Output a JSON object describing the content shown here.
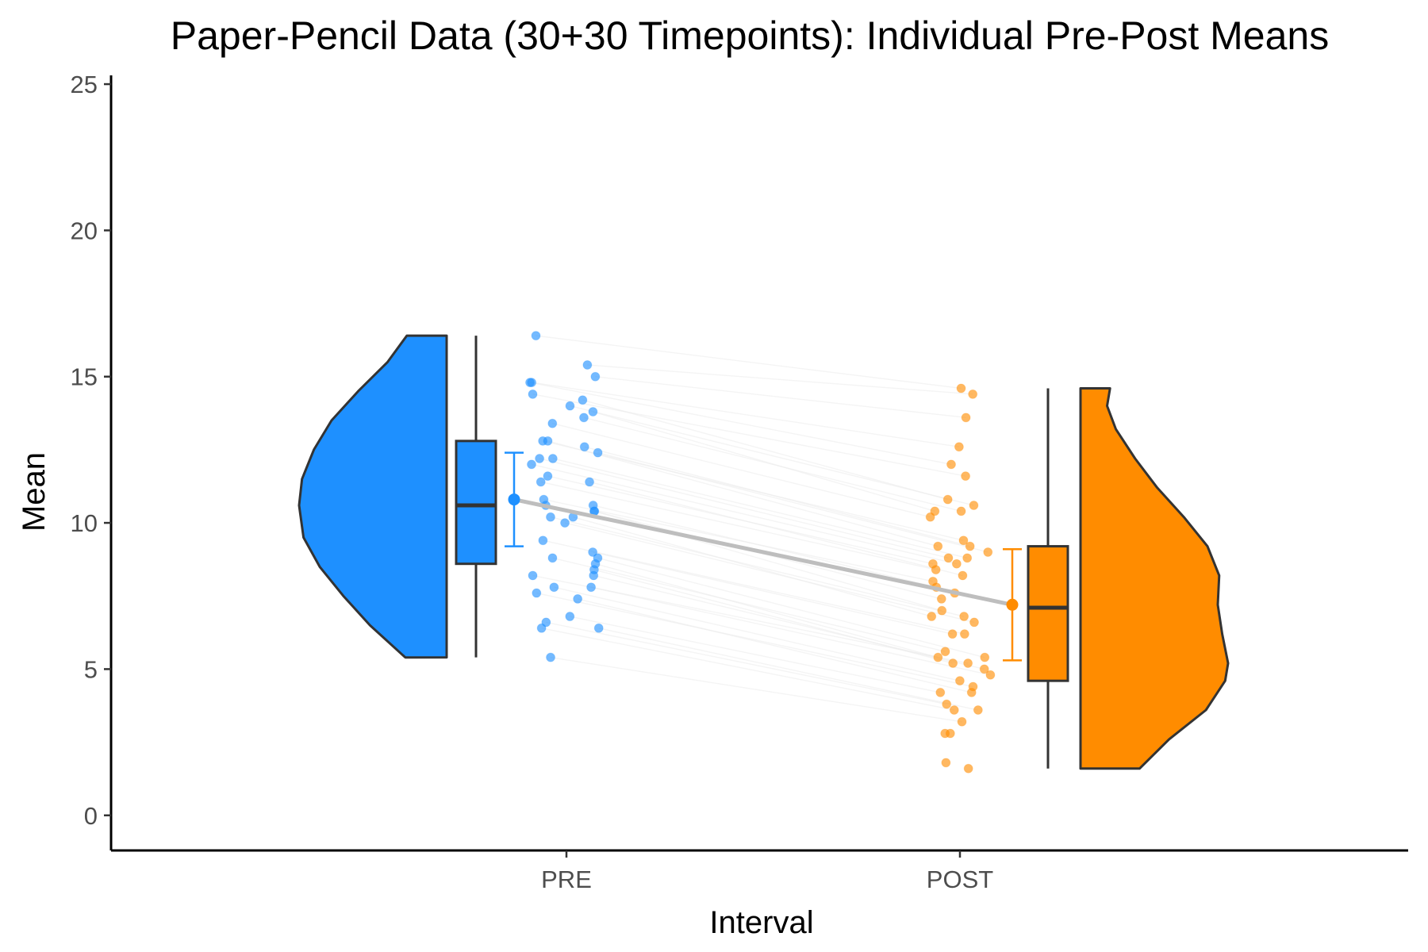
{
  "chart_data": {
    "type": "raincloud",
    "title": "Paper-Pencil Data (30+30 Timepoints): Individual Pre-Post Means",
    "xlabel": "Interval",
    "ylabel": "Mean",
    "categories": [
      "PRE",
      "POST"
    ],
    "ylim": [
      -1.2,
      25.3
    ],
    "yticks": [
      0,
      5,
      10,
      15,
      20,
      25
    ],
    "grid": false,
    "legend": "none",
    "colors": {
      "PRE": "#1e90ff",
      "POST": "#ff8c00",
      "outline": "#333333",
      "mean_line": "#bebebe",
      "paired_lines": "#ebebeb"
    },
    "series": [
      {
        "group": "PRE",
        "box": {
          "whisker_low": 5.4,
          "q1": 8.6,
          "median": 10.6,
          "q3": 12.8,
          "whisker_high": 16.4
        },
        "mean": 10.8,
        "error_bar": [
          9.2,
          12.4
        ],
        "density": [
          [
            5.4,
            0.28
          ],
          [
            6.5,
            0.52
          ],
          [
            7.5,
            0.7
          ],
          [
            8.5,
            0.86
          ],
          [
            9.5,
            0.97
          ],
          [
            10.6,
            1.0
          ],
          [
            11.5,
            0.98
          ],
          [
            12.5,
            0.9
          ],
          [
            13.5,
            0.78
          ],
          [
            14.5,
            0.6
          ],
          [
            15.5,
            0.4
          ],
          [
            16.4,
            0.27
          ]
        ],
        "points": [
          16.4,
          15.4,
          15.0,
          14.8,
          14.8,
          14.4,
          14.2,
          14.0,
          13.8,
          13.6,
          13.4,
          12.8,
          12.8,
          12.6,
          12.4,
          12.2,
          12.2,
          12.0,
          11.6,
          11.4,
          11.4,
          10.8,
          10.6,
          10.6,
          10.4,
          10.4,
          10.2,
          10.2,
          10.0,
          9.4,
          9.0,
          8.8,
          8.8,
          8.6,
          8.4,
          8.2,
          8.2,
          7.8,
          7.8,
          7.6,
          7.4,
          6.8,
          6.6,
          6.4,
          6.4,
          5.4
        ]
      },
      {
        "group": "POST",
        "box": {
          "whisker_low": 1.6,
          "q1": 4.6,
          "median": 7.1,
          "q3": 9.2,
          "whisker_high": 14.6
        },
        "mean": 7.2,
        "error_bar": [
          5.3,
          9.1
        ],
        "density": [
          [
            1.6,
            0.4
          ],
          [
            2.6,
            0.6
          ],
          [
            3.6,
            0.85
          ],
          [
            4.6,
            0.98
          ],
          [
            5.2,
            1.0
          ],
          [
            6.2,
            0.96
          ],
          [
            7.2,
            0.93
          ],
          [
            8.2,
            0.94
          ],
          [
            9.2,
            0.86
          ],
          [
            10.2,
            0.7
          ],
          [
            11.2,
            0.52
          ],
          [
            12.2,
            0.37
          ],
          [
            13.2,
            0.24
          ],
          [
            14.0,
            0.18
          ],
          [
            14.6,
            0.2
          ]
        ],
        "points": [
          14.6,
          14.4,
          13.6,
          12.6,
          12.0,
          11.6,
          10.8,
          10.6,
          10.4,
          10.4,
          10.2,
          9.4,
          9.2,
          9.2,
          9.0,
          8.8,
          8.8,
          8.6,
          8.6,
          8.4,
          8.2,
          8.0,
          7.8,
          7.6,
          7.4,
          7.0,
          6.8,
          6.8,
          6.6,
          6.2,
          6.2,
          5.6,
          5.4,
          5.4,
          5.2,
          5.2,
          5.0,
          4.8,
          4.6,
          4.4,
          4.2,
          4.2,
          3.8,
          3.6,
          3.6,
          3.2,
          2.8,
          2.8,
          1.8,
          1.6
        ]
      }
    ]
  }
}
